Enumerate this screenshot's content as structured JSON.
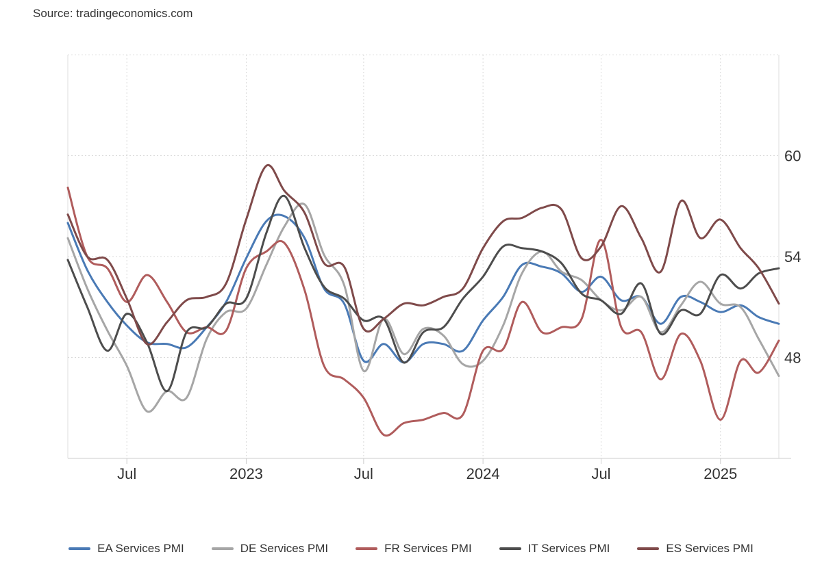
{
  "source": "Source: tradingeconomics.com",
  "chart_data": {
    "type": "line",
    "title": "",
    "xlabel": "",
    "ylabel": "",
    "ylim": [
      42,
      66
    ],
    "yticks": [
      48,
      54,
      60
    ],
    "xlim": [
      "2022-04-01",
      "2025-04-01"
    ],
    "xticks": [
      {
        "date": "2022-07-01",
        "label": "Jul"
      },
      {
        "date": "2023-01-01",
        "label": "2023"
      },
      {
        "date": "2023-07-01",
        "label": "Jul"
      },
      {
        "date": "2024-01-01",
        "label": "2024"
      },
      {
        "date": "2024-07-01",
        "label": "Jul"
      },
      {
        "date": "2025-01-01",
        "label": "2025"
      }
    ],
    "grid": true,
    "legend_position": "bottom",
    "x": [
      "2022-04",
      "2022-05",
      "2022-06",
      "2022-07",
      "2022-08",
      "2022-09",
      "2022-10",
      "2022-11",
      "2022-12",
      "2023-01",
      "2023-02",
      "2023-03",
      "2023-04",
      "2023-05",
      "2023-06",
      "2023-07",
      "2023-08",
      "2023-09",
      "2023-10",
      "2023-11",
      "2023-12",
      "2024-01",
      "2024-02",
      "2024-03",
      "2024-04",
      "2024-05",
      "2024-06",
      "2024-07",
      "2024-08",
      "2024-09",
      "2024-10",
      "2024-11",
      "2024-12",
      "2025-01",
      "2025-02",
      "2025-03",
      "2025-04"
    ],
    "series": [
      {
        "name": "EA Services PMI",
        "color": "#4a7ab5",
        "values": [
          56.0,
          53.2,
          51.3,
          49.9,
          48.9,
          48.8,
          48.6,
          49.8,
          51.3,
          53.9,
          56.1,
          56.4,
          55.1,
          52.1,
          51.2,
          47.8,
          48.8,
          47.7,
          48.8,
          48.8,
          48.4,
          50.2,
          51.6,
          53.5,
          53.4,
          53.0,
          51.9,
          52.8,
          51.4,
          51.6,
          50.0,
          51.6,
          51.3,
          50.7,
          51.1,
          50.4,
          50.0
        ]
      },
      {
        "name": "DE Services PMI",
        "color": "#a6a6a6",
        "values": [
          55.1,
          52.1,
          49.6,
          47.5,
          44.8,
          46.0,
          45.6,
          49.1,
          50.7,
          50.9,
          53.5,
          55.8,
          57.1,
          54.1,
          52.3,
          47.2,
          50.3,
          48.2,
          49.7,
          49.3,
          47.6,
          47.8,
          49.9,
          53.0,
          54.3,
          53.1,
          52.6,
          51.4,
          50.8,
          51.6,
          49.5,
          51.1,
          52.5,
          51.2,
          51.0,
          49.1,
          46.9
        ]
      },
      {
        "name": "FR Services PMI",
        "color": "#b05c5c",
        "values": [
          58.1,
          54.0,
          53.3,
          51.3,
          52.9,
          51.3,
          49.5,
          49.8,
          49.6,
          53.3,
          54.3,
          54.8,
          52.0,
          47.5,
          46.7,
          45.6,
          43.4,
          44.1,
          44.3,
          44.7,
          44.6,
          48.4,
          48.5,
          51.3,
          49.5,
          49.8,
          50.3,
          55.0,
          49.8,
          49.5,
          46.7,
          49.4,
          47.8,
          44.3,
          47.8,
          47.1,
          49.0
        ]
      },
      {
        "name": "IT Services PMI",
        "color": "#4d4d4d",
        "values": [
          53.8,
          51.0,
          48.4,
          50.6,
          48.9,
          46.0,
          49.5,
          49.8,
          51.2,
          51.5,
          55.4,
          57.6,
          54.5,
          52.2,
          51.5,
          50.2,
          50.3,
          47.7,
          49.5,
          49.8,
          51.5,
          52.8,
          54.6,
          54.5,
          54.3,
          53.6,
          51.8,
          51.4,
          50.6,
          52.4,
          49.4,
          50.8,
          50.6,
          52.9,
          52.1,
          53.0,
          53.3
        ]
      },
      {
        "name": "ES Services PMI",
        "color": "#7f4a4a",
        "values": [
          56.5,
          54.0,
          53.8,
          51.5,
          48.8,
          50.1,
          51.4,
          51.6,
          52.4,
          56.2,
          59.4,
          57.9,
          56.6,
          53.6,
          53.4,
          49.7,
          50.3,
          51.2,
          51.1,
          51.6,
          52.1,
          54.5,
          56.1,
          56.3,
          56.9,
          56.8,
          53.9,
          54.6,
          57.0,
          55.1,
          53.1,
          57.3,
          55.1,
          56.2,
          54.5,
          53.3,
          51.2
        ]
      }
    ]
  }
}
